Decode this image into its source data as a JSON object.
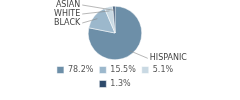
{
  "chart_data": {
    "type": "pie",
    "categories": [
      "HISPANIC",
      "BLACK",
      "WHITE",
      "ASIAN"
    ],
    "values": [
      78.2,
      15.5,
      5.1,
      1.3
    ],
    "value_labels": [
      "78.2%",
      "15.5%",
      "5.1%",
      "1.3%"
    ],
    "colors": [
      "#6d8fa8",
      "#9cb8cc",
      "#c9d9e3",
      "#2e4a6b"
    ],
    "legend": "bottom"
  }
}
